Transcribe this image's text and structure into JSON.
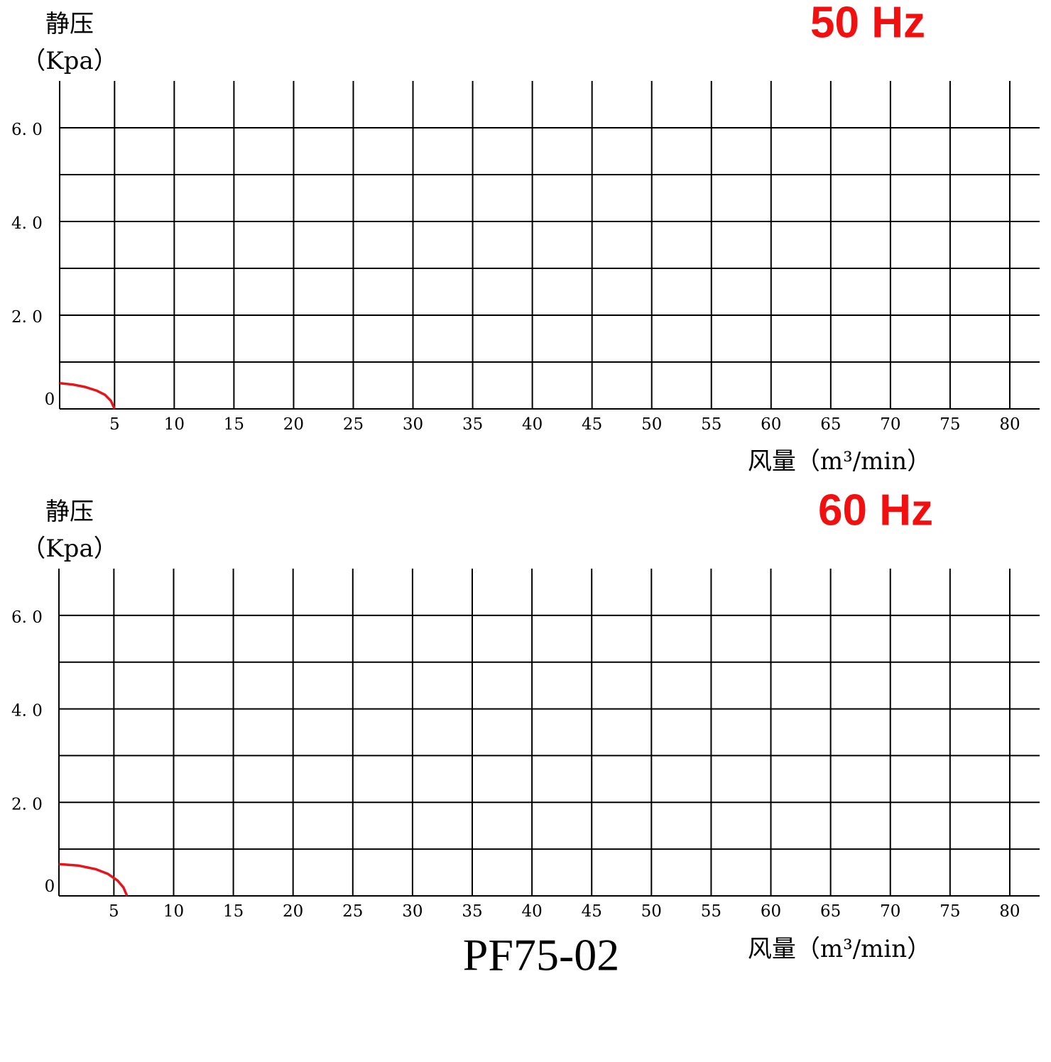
{
  "chart_data": [
    {
      "type": "line",
      "title": "50 Hz",
      "y_label": "静压",
      "y_unit": "（Kpa）",
      "x_label": "风量（m³/min）",
      "x": [
        0.4,
        1.5,
        2.5,
        3.5,
        4.2,
        4.7,
        5.0
      ],
      "series": [
        {
          "color": "#e8141b",
          "values": [
            0.55,
            0.52,
            0.47,
            0.39,
            0.3,
            0.17,
            0
          ]
        }
      ],
      "xlim": [
        0.4,
        82.5
      ],
      "ylim": [
        0,
        7
      ],
      "xticks": [
        5,
        10,
        15,
        20,
        25,
        30,
        35,
        40,
        45,
        50,
        55,
        60,
        65,
        70,
        75,
        80
      ],
      "yticks": [
        0,
        {
          "value": 2,
          "label": "2. 0"
        },
        {
          "value": 4,
          "label": "4. 0"
        },
        {
          "value": 6,
          "label": "6. 0"
        }
      ],
      "minor_yticks": [
        1,
        3,
        5
      ],
      "grid": true
    },
    {
      "type": "line",
      "title": "60 Hz",
      "y_label": "静压",
      "y_unit": "（Kpa）",
      "x_label": "风量（m³/min）",
      "x": [
        0.4,
        2.0,
        3.5,
        4.5,
        5.3,
        5.8,
        6.1
      ],
      "series": [
        {
          "color": "#e8141b",
          "values": [
            0.68,
            0.65,
            0.57,
            0.47,
            0.33,
            0.18,
            0
          ]
        }
      ],
      "xlim": [
        0.4,
        82.5
      ],
      "ylim": [
        0,
        7
      ],
      "xticks": [
        5,
        10,
        15,
        20,
        25,
        30,
        35,
        40,
        45,
        50,
        55,
        60,
        65,
        70,
        75,
        80
      ],
      "yticks": [
        0,
        {
          "value": 2,
          "label": "2. 0"
        },
        {
          "value": 4,
          "label": "4. 0"
        },
        {
          "value": 6,
          "label": "6. 0"
        }
      ],
      "minor_yticks": [
        1,
        3,
        5
      ],
      "grid": true
    }
  ],
  "model": "PF75-02"
}
